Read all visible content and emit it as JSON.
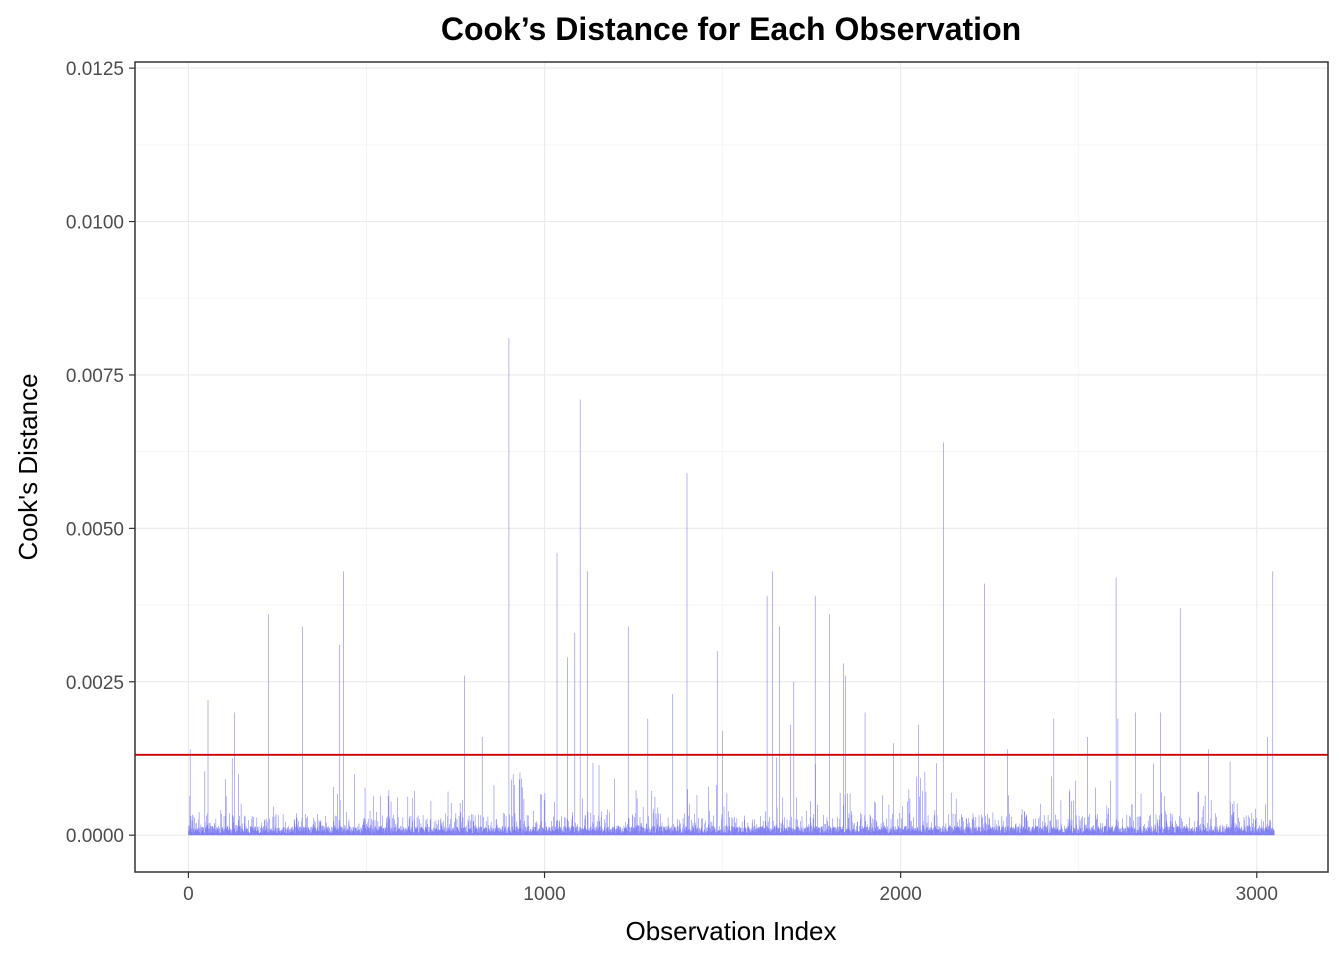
{
  "chart_data": {
    "type": "bar",
    "title": "Cook’s Distance for Each Observation",
    "xlabel": "Observation Index",
    "ylabel": "Cook's Distance",
    "xlim": [
      -150,
      3200
    ],
    "ylim": [
      -0.0006,
      0.0126
    ],
    "x_ticks": [
      0,
      1000,
      2000,
      3000
    ],
    "x_tick_labels": [
      "0",
      "1000",
      "2000",
      "3000"
    ],
    "y_ticks": [
      0.0,
      0.0025,
      0.005,
      0.0075,
      0.01,
      0.0125
    ],
    "y_tick_labels": [
      "0.0000",
      "0.0025",
      "0.0050",
      "0.0075",
      "0.0100",
      "0.0125"
    ],
    "n_observations": 3050,
    "bar_color": "#7b7bf0",
    "threshold": {
      "value": 0.00131,
      "color": "#cc0000"
    },
    "grid": true,
    "legend": "none",
    "notable_observations": {
      "x": [
        5,
        55,
        130,
        225,
        320,
        425,
        435,
        775,
        825,
        900,
        1035,
        1065,
        1085,
        1100,
        1120,
        1235,
        1290,
        1360,
        1400,
        1485,
        1500,
        1625,
        1640,
        1660,
        1690,
        1700,
        1760,
        1800,
        1840,
        1845,
        1900,
        1980,
        2050,
        2120,
        2235,
        2300,
        2430,
        2525,
        2605,
        2610,
        2660,
        2730,
        2785,
        2865,
        2925,
        3030,
        3045
      ],
      "y": [
        0.0014,
        0.0022,
        0.002,
        0.0036,
        0.0034,
        0.0031,
        0.0043,
        0.0026,
        0.0016,
        0.0081,
        0.0046,
        0.0029,
        0.0033,
        0.0071,
        0.0043,
        0.0034,
        0.0019,
        0.0023,
        0.0059,
        0.003,
        0.0017,
        0.0039,
        0.0043,
        0.0034,
        0.0018,
        0.0025,
        0.0039,
        0.0036,
        0.0028,
        0.0026,
        0.002,
        0.0015,
        0.0018,
        0.0064,
        0.0041,
        0.0014,
        0.0019,
        0.0016,
        0.0042,
        0.0019,
        0.002,
        0.002,
        0.0037,
        0.0014,
        0.0012,
        0.0016,
        0.0043
      ]
    }
  }
}
